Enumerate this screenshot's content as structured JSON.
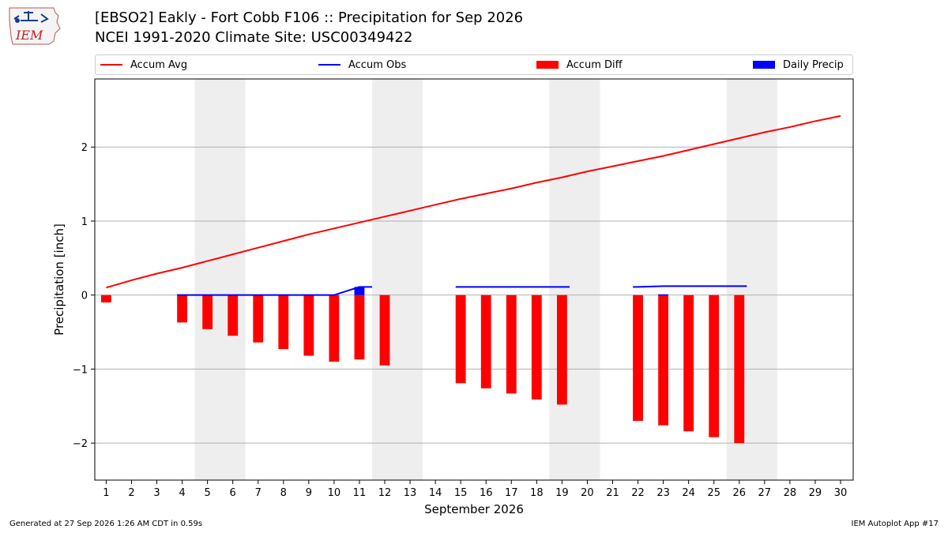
{
  "header": {
    "title": "[EBSO2] Eakly - Fort Cobb F106 :: Precipitation for Sep 2026",
    "subtitle": "NCEI 1991-2020 Climate Site: USC00349422"
  },
  "logo": {
    "text": "IEM"
  },
  "legend": {
    "position": "top",
    "items": [
      {
        "label": "Accum Avg",
        "kind": "line",
        "color": "#ff0000"
      },
      {
        "label": "Accum Obs",
        "kind": "line",
        "color": "#0000ff"
      },
      {
        "label": "Accum Diff",
        "kind": "bar",
        "color": "#ff0000"
      },
      {
        "label": "Daily Precip",
        "kind": "bar",
        "color": "#0000ff"
      }
    ]
  },
  "footer": {
    "left": "Generated at 27 Sep 2026 1:26 AM CDT in 0.59s",
    "right": "IEM Autoplot App #17"
  },
  "chart_data": {
    "type": "bar",
    "title": "[EBSO2] Eakly - Fort Cobb F106 :: Precipitation for Sep 2026",
    "xlabel": "September 2026",
    "ylabel": "Precipitation [inch]",
    "ylim": [
      -2.5,
      2.92
    ],
    "yticks": [
      -2,
      -1,
      0,
      1,
      2
    ],
    "ytick_labels": [
      "−2",
      "−1",
      "0",
      "1",
      "2"
    ],
    "xlim": [
      0.55,
      30.5
    ],
    "days": [
      1,
      2,
      3,
      4,
      5,
      6,
      7,
      8,
      9,
      10,
      11,
      12,
      13,
      14,
      15,
      16,
      17,
      18,
      19,
      20,
      21,
      22,
      23,
      24,
      25,
      26,
      27,
      28,
      29,
      30
    ],
    "grid": "horizontal",
    "weekend_shading": [
      [
        4.5,
        6.5
      ],
      [
        11.5,
        13.5
      ],
      [
        18.5,
        20.5
      ],
      [
        25.5,
        27.5
      ]
    ],
    "colors": {
      "avg": "#ff0000",
      "obs": "#0000ff",
      "diff": "#ff0000",
      "daily": "#0000ff",
      "shade": "#eeeeee"
    },
    "series": [
      {
        "name": "Accum Avg",
        "kind": "line",
        "x": [
          1,
          2,
          3,
          4,
          5,
          6,
          7,
          8,
          9,
          10,
          11,
          12,
          13,
          14,
          15,
          16,
          17,
          18,
          19,
          20,
          21,
          22,
          23,
          24,
          25,
          26,
          27,
          28,
          29,
          30
        ],
        "values": [
          0.1,
          0.2,
          0.29,
          0.37,
          0.46,
          0.55,
          0.64,
          0.73,
          0.82,
          0.9,
          0.98,
          1.06,
          1.14,
          1.22,
          1.3,
          1.37,
          1.44,
          1.52,
          1.59,
          1.67,
          1.74,
          1.81,
          1.88,
          1.96,
          2.04,
          2.12,
          2.2,
          2.27,
          2.35,
          2.42
        ]
      },
      {
        "name": "Accum Obs",
        "kind": "line",
        "segments": [
          {
            "x": [
              3.8,
              4,
              5,
              6,
              7,
              8,
              9,
              10,
              11,
              11.5
            ],
            "values": [
              0,
              0,
              0,
              0,
              0,
              0,
              0,
              0,
              0.11,
              0.11
            ]
          },
          {
            "x": [
              14.8,
              15,
              16,
              17,
              18,
              19,
              19.3
            ],
            "values": [
              0.11,
              0.11,
              0.11,
              0.11,
              0.11,
              0.11,
              0.11
            ]
          },
          {
            "x": [
              21.8,
              22,
              23,
              24,
              25,
              26,
              26.3
            ],
            "values": [
              0.11,
              0.11,
              0.12,
              0.12,
              0.12,
              0.12,
              0.12
            ]
          }
        ]
      },
      {
        "name": "Accum Diff",
        "kind": "bar",
        "x": [
          1,
          4,
          5,
          6,
          7,
          8,
          9,
          10,
          11,
          12,
          15,
          16,
          17,
          18,
          19,
          22,
          23,
          24,
          25,
          26
        ],
        "values": [
          -0.1,
          -0.37,
          -0.46,
          -0.55,
          -0.64,
          -0.73,
          -0.82,
          -0.9,
          -0.87,
          -0.95,
          -1.19,
          -1.26,
          -1.33,
          -1.41,
          -1.48,
          -1.7,
          -1.76,
          -1.84,
          -1.92,
          -2.0
        ]
      },
      {
        "name": "Daily Precip",
        "kind": "bar",
        "x": [
          11,
          23
        ],
        "values": [
          0.11,
          0.01
        ]
      }
    ]
  }
}
